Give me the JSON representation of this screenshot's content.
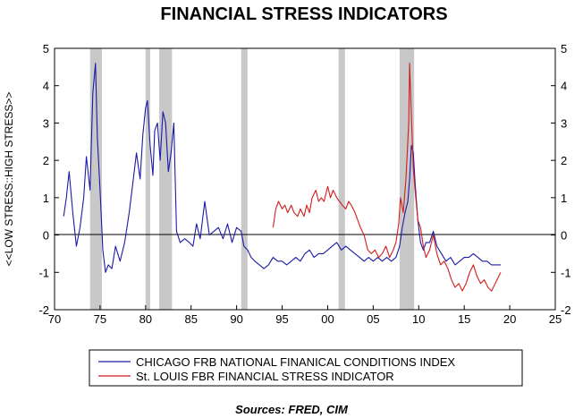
{
  "chart_data": {
    "type": "line",
    "title": "FINANCIAL STRESS INDICATORS",
    "ylabel": "<<LOW STRESS::HIGH STRESS>>",
    "source": "Sources:  FRED, CIM",
    "xlim": [
      70,
      25
    ],
    "x_tick_labels": [
      "70",
      "75",
      "80",
      "85",
      "90",
      "95",
      "00",
      "05",
      "10",
      "15",
      "20",
      "25"
    ],
    "ylim": [
      -2,
      5
    ],
    "y_ticks": [
      -2,
      -1,
      0,
      1,
      2,
      3,
      4,
      5
    ],
    "grid": false,
    "legend_position": "bottom",
    "recession_bands_years": [
      [
        1973.9,
        1975.2
      ],
      [
        1980.0,
        1980.5
      ],
      [
        1981.5,
        1982.9
      ],
      [
        1990.5,
        1991.2
      ],
      [
        2001.2,
        2001.9
      ],
      [
        2007.9,
        2009.5
      ]
    ],
    "series": [
      {
        "name": "CHICAGO FRB NATIONAL FINANICAL CONDITIONS INDEX",
        "color": "#1a1aa8",
        "x": [
          1971.0,
          1971.3,
          1971.6,
          1972.0,
          1972.4,
          1972.8,
          1973.2,
          1973.5,
          1973.9,
          1974.2,
          1974.5,
          1974.7,
          1975.0,
          1975.3,
          1975.6,
          1975.9,
          1976.3,
          1976.7,
          1977.2,
          1977.7,
          1978.2,
          1978.6,
          1979.0,
          1979.4,
          1979.7,
          1980.0,
          1980.2,
          1980.5,
          1980.8,
          1981.0,
          1981.3,
          1981.6,
          1981.9,
          1982.2,
          1982.5,
          1982.8,
          1983.1,
          1983.4,
          1983.8,
          1984.3,
          1984.8,
          1985.2,
          1985.6,
          1986.0,
          1986.5,
          1987.0,
          1987.5,
          1988.0,
          1988.5,
          1989.0,
          1989.5,
          1990.0,
          1990.5,
          1990.8,
          1991.2,
          1991.6,
          1992.0,
          1992.5,
          1993.0,
          1993.5,
          1994.0,
          1994.5,
          1995.0,
          1995.5,
          1996.0,
          1996.5,
          1997.0,
          1997.5,
          1998.0,
          1998.5,
          1999.0,
          1999.5,
          2000.0,
          2000.5,
          2001.0,
          2001.5,
          2002.0,
          2002.5,
          2003.0,
          2003.5,
          2004.0,
          2004.5,
          2005.0,
          2005.5,
          2006.0,
          2006.5,
          2007.0,
          2007.5,
          2007.9,
          2008.2,
          2008.5,
          2008.8,
          2009.0,
          2009.2,
          2009.4,
          2009.6,
          2009.9,
          2010.2,
          2010.5,
          2010.8,
          2011.2,
          2011.6,
          2012.0,
          2012.5,
          2013.0,
          2013.5,
          2014.0,
          2014.5,
          2015.0,
          2015.5,
          2016.0,
          2016.5,
          2017.0,
          2017.5,
          2018.0,
          2018.5,
          2019.0
        ],
        "values": [
          0.5,
          1.0,
          1.7,
          0.6,
          -0.3,
          0.2,
          1.0,
          2.1,
          1.2,
          3.8,
          4.6,
          2.6,
          1.2,
          -0.4,
          -1.0,
          -0.8,
          -0.9,
          -0.3,
          -0.7,
          -0.2,
          0.6,
          1.4,
          2.2,
          1.5,
          2.7,
          3.4,
          3.6,
          2.4,
          1.6,
          2.8,
          3.0,
          2.0,
          3.3,
          3.0,
          1.7,
          2.2,
          3.0,
          0.1,
          -0.2,
          -0.1,
          -0.2,
          -0.3,
          0.3,
          -0.1,
          0.9,
          0.0,
          0.1,
          0.2,
          -0.1,
          0.3,
          -0.2,
          0.2,
          0.1,
          -0.3,
          -0.4,
          -0.6,
          -0.7,
          -0.8,
          -0.9,
          -0.8,
          -0.6,
          -0.7,
          -0.7,
          -0.8,
          -0.7,
          -0.6,
          -0.7,
          -0.5,
          -0.4,
          -0.6,
          -0.5,
          -0.5,
          -0.4,
          -0.3,
          -0.2,
          -0.4,
          -0.3,
          -0.4,
          -0.5,
          -0.6,
          -0.7,
          -0.6,
          -0.7,
          -0.6,
          -0.7,
          -0.6,
          -0.7,
          -0.6,
          -0.3,
          0.2,
          0.6,
          0.9,
          1.5,
          2.4,
          2.2,
          1.4,
          0.4,
          -0.2,
          -0.4,
          -0.2,
          -0.2,
          0.1,
          -0.3,
          -0.5,
          -0.7,
          -0.6,
          -0.8,
          -0.7,
          -0.6,
          -0.6,
          -0.5,
          -0.6,
          -0.7,
          -0.7,
          -0.8,
          -0.8,
          -0.8
        ]
      },
      {
        "name": "St. LOUIS FBR FINANCIAL STRESS INDICATOR",
        "color": "#d41c1c",
        "x": [
          1994.0,
          1994.3,
          1994.6,
          1995.0,
          1995.3,
          1995.6,
          1996.0,
          1996.3,
          1996.7,
          1997.0,
          1997.4,
          1997.7,
          1998.0,
          1998.3,
          1998.7,
          1999.0,
          1999.3,
          1999.6,
          2000.0,
          2000.3,
          2000.6,
          2001.0,
          2001.3,
          2001.6,
          2002.0,
          2002.3,
          2002.6,
          2003.0,
          2003.3,
          2003.6,
          2004.0,
          2004.4,
          2004.8,
          2005.2,
          2005.6,
          2006.0,
          2006.4,
          2006.8,
          2007.2,
          2007.5,
          2007.8,
          2008.0,
          2008.3,
          2008.6,
          2008.9,
          2009.0,
          2009.2,
          2009.4,
          2009.6,
          2009.9,
          2010.2,
          2010.5,
          2010.8,
          2011.2,
          2011.6,
          2012.0,
          2012.4,
          2012.8,
          2013.2,
          2013.6,
          2014.0,
          2014.4,
          2014.8,
          2015.2,
          2015.6,
          2016.0,
          2016.4,
          2016.8,
          2017.2,
          2017.6,
          2018.0,
          2018.4,
          2018.8,
          2019.0
        ],
        "values": [
          0.2,
          0.7,
          0.9,
          0.7,
          0.8,
          0.6,
          0.8,
          0.6,
          0.5,
          0.7,
          0.5,
          0.8,
          0.6,
          1.0,
          1.2,
          0.9,
          1.0,
          0.9,
          1.3,
          1.0,
          1.2,
          1.0,
          0.9,
          0.8,
          0.7,
          0.9,
          0.8,
          0.6,
          0.4,
          0.2,
          0.0,
          -0.4,
          -0.5,
          -0.4,
          -0.6,
          -0.5,
          -0.3,
          -0.6,
          -0.4,
          -0.2,
          0.3,
          1.0,
          0.6,
          1.5,
          3.0,
          4.6,
          3.2,
          1.8,
          1.2,
          0.4,
          0.2,
          -0.3,
          -0.6,
          -0.4,
          0.0,
          -0.5,
          -0.8,
          -0.7,
          -0.9,
          -1.2,
          -1.4,
          -1.3,
          -1.5,
          -1.3,
          -1.0,
          -0.8,
          -1.1,
          -1.3,
          -1.2,
          -1.4,
          -1.5,
          -1.3,
          -1.1,
          -1.0
        ]
      }
    ]
  }
}
